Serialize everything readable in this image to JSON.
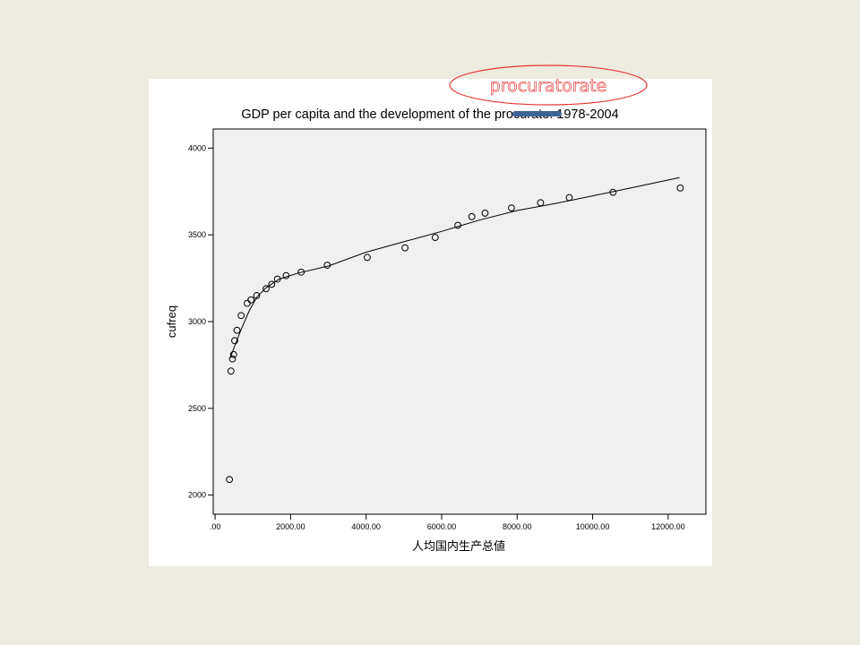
{
  "callout": {
    "label": "procuratorate",
    "outline_color": "#e53935",
    "text_color": "#e02020",
    "mark_color": "#3f6394"
  },
  "chart_data": {
    "type": "scatter",
    "title": "GDP per capita and the development of the procurate: 1978-2004",
    "xlabel": "人均国内生产总値",
    "ylabel": "cufreq",
    "xlim": [
      -50,
      13000
    ],
    "ylim": [
      1890,
      4110
    ],
    "x_ticks": [
      0,
      2000,
      4000,
      6000,
      8000,
      10000,
      12000
    ],
    "x_tick_labels": [
      ".00",
      "2000.00",
      "4000.00",
      "6000.00",
      "8000.00",
      "10000.00",
      "12000.00"
    ],
    "y_ticks": [
      2000,
      2500,
      3000,
      3500,
      4000
    ],
    "y_tick_labels": [
      "2000",
      "2500",
      "3000",
      "3500",
      "4000"
    ],
    "grid": false,
    "plot_background": "#f0f0f0",
    "points": [
      {
        "x": 380,
        "y": 2090
      },
      {
        "x": 420,
        "y": 2715
      },
      {
        "x": 460,
        "y": 2785
      },
      {
        "x": 490,
        "y": 2810
      },
      {
        "x": 520,
        "y": 2890
      },
      {
        "x": 580,
        "y": 2950
      },
      {
        "x": 690,
        "y": 3035
      },
      {
        "x": 850,
        "y": 3105
      },
      {
        "x": 950,
        "y": 3125
      },
      {
        "x": 1100,
        "y": 3150
      },
      {
        "x": 1350,
        "y": 3190
      },
      {
        "x": 1500,
        "y": 3215
      },
      {
        "x": 1650,
        "y": 3245
      },
      {
        "x": 1880,
        "y": 3265
      },
      {
        "x": 2280,
        "y": 3285
      },
      {
        "x": 2970,
        "y": 3325
      },
      {
        "x": 4030,
        "y": 3370
      },
      {
        "x": 5030,
        "y": 3425
      },
      {
        "x": 5830,
        "y": 3485
      },
      {
        "x": 6430,
        "y": 3555
      },
      {
        "x": 6800,
        "y": 3605
      },
      {
        "x": 7150,
        "y": 3625
      },
      {
        "x": 7850,
        "y": 3655
      },
      {
        "x": 8620,
        "y": 3685
      },
      {
        "x": 9380,
        "y": 3715
      },
      {
        "x": 10540,
        "y": 3745
      },
      {
        "x": 12320,
        "y": 3770
      }
    ],
    "fit_line": [
      {
        "x": 400,
        "y": 2790
      },
      {
        "x": 520,
        "y": 2860
      },
      {
        "x": 680,
        "y": 2950
      },
      {
        "x": 900,
        "y": 3060
      },
      {
        "x": 1100,
        "y": 3140
      },
      {
        "x": 1350,
        "y": 3195
      },
      {
        "x": 1700,
        "y": 3245
      },
      {
        "x": 2200,
        "y": 3280
      },
      {
        "x": 3000,
        "y": 3320
      },
      {
        "x": 4000,
        "y": 3400
      },
      {
        "x": 5000,
        "y": 3460
      },
      {
        "x": 6000,
        "y": 3520
      },
      {
        "x": 7000,
        "y": 3585
      },
      {
        "x": 8000,
        "y": 3640
      },
      {
        "x": 9000,
        "y": 3680
      },
      {
        "x": 10000,
        "y": 3725
      },
      {
        "x": 11000,
        "y": 3770
      },
      {
        "x": 12300,
        "y": 3830
      }
    ]
  }
}
